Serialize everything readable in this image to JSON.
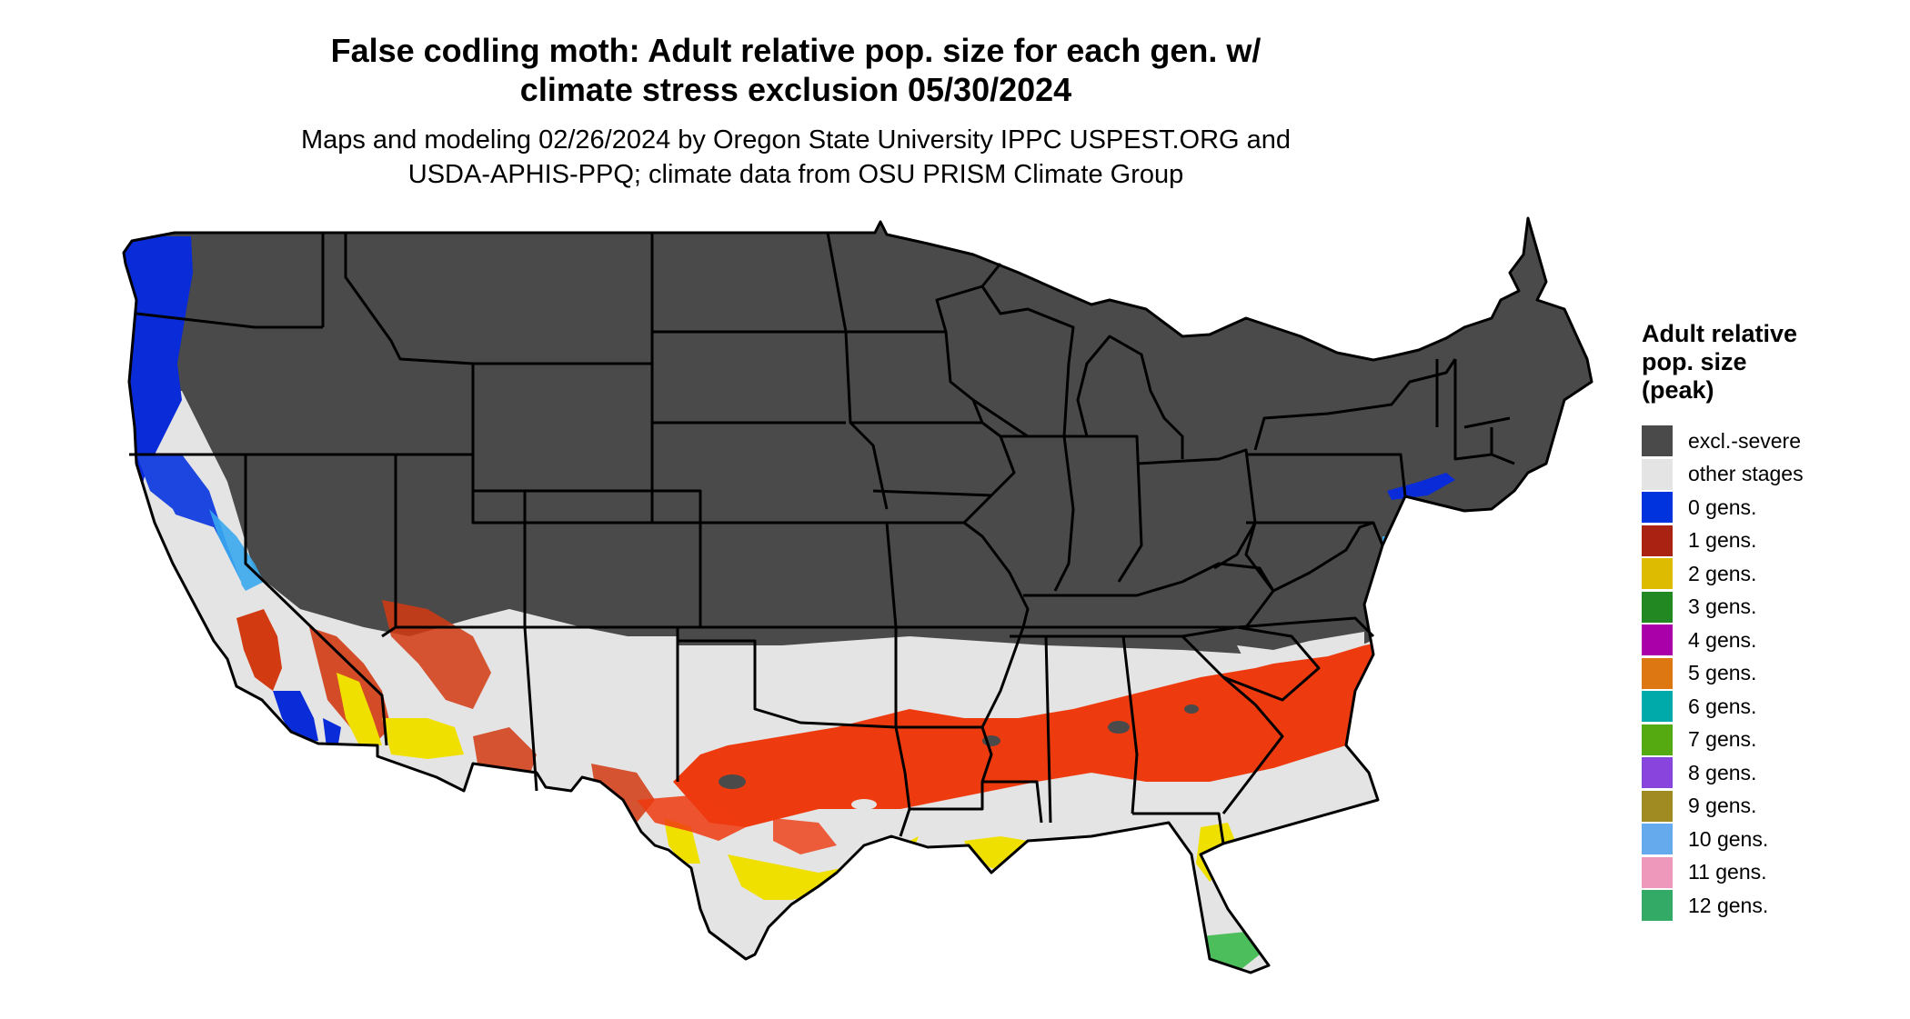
{
  "title": {
    "line1": "False codling moth: Adult relative pop. size for each gen. w/",
    "line2": "climate stress exclusion 05/30/2024"
  },
  "subtitle": {
    "line1": "Maps and modeling 02/26/2024 by Oregon State University IPPC USPEST.ORG and",
    "line2": "USDA-APHIS-PPQ; climate data from OSU PRISM Climate Group"
  },
  "legend": {
    "title_line1": "Adult relative",
    "title_line2": "pop. size",
    "title_line3": "(peak)",
    "items": [
      {
        "label": "excl.-severe",
        "color": "#4a4a4a"
      },
      {
        "label": "other stages",
        "color": "#e4e4e4"
      },
      {
        "label": "0 gens.",
        "color": "#0033dd"
      },
      {
        "label": "1 gens.",
        "color": "#aa2211"
      },
      {
        "label": "2 gens.",
        "color": "#ddbb00"
      },
      {
        "label": "3 gens.",
        "color": "#228822"
      },
      {
        "label": "4 gens.",
        "color": "#aa00aa"
      },
      {
        "label": "5 gens.",
        "color": "#dd7711"
      },
      {
        "label": "6 gens.",
        "color": "#00aaaa"
      },
      {
        "label": "7 gens.",
        "color": "#55aa11"
      },
      {
        "label": "8 gens.",
        "color": "#8844dd"
      },
      {
        "label": "9 gens.",
        "color": "#a08a22"
      },
      {
        "label": "10 gens.",
        "color": "#66aaee"
      },
      {
        "label": "11 gens.",
        "color": "#ee99bb"
      },
      {
        "label": "12 gens.",
        "color": "#33aa66"
      }
    ]
  },
  "map_colors": {
    "excluded": "#4a4a4a",
    "other_stages": "#e4e4e4",
    "zero_gens": "#0a2bd8",
    "one_gen": "#ee3a0f",
    "one_gen_dark": "#b8310f",
    "two_gens": "#f0e000",
    "three_plus": "#5cbf5c",
    "light_blue": "#3aa8ee",
    "border": "#000000"
  }
}
